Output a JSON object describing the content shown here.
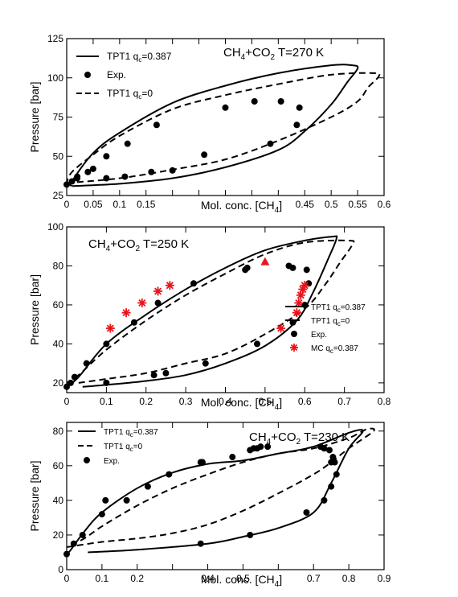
{
  "chart_data": [
    {
      "type": "line",
      "title": "CH4+CO2  T=270 K",
      "title_main": "CH",
      "title_sub1": "4",
      "title_mid": "+CO",
      "title_sub2": "2",
      "title_tail": "  T=270 K",
      "xlabel": "Mol. conc. [CH4]",
      "xlabel_main": "Mol. conc. [CH",
      "xlabel_sub": "4",
      "xlabel_tail": "]",
      "ylabel": "Pressure [bar]",
      "xlim": [
        0,
        0.6
      ],
      "ylim": [
        25,
        125
      ],
      "xticks": [
        {
          "v": 0,
          "label": "0"
        },
        {
          "v": 0.05,
          "label": "0.05"
        },
        {
          "v": 0.1,
          "label": "0.1"
        },
        {
          "v": 0.15,
          "label": "0.15"
        },
        {
          "v": 0.45,
          "label": "0.45"
        },
        {
          "v": 0.5,
          "label": "0.5"
        },
        {
          "v": 0.55,
          "label": "0.55"
        },
        {
          "v": 0.6,
          "label": "0.6"
        }
      ],
      "xminor": [
        0.2,
        0.25,
        0.3,
        0.35,
        0.4
      ],
      "yticks": [
        {
          "v": 25,
          "label": "25"
        },
        {
          "v": 50,
          "label": "50"
        },
        {
          "v": 75,
          "label": "75"
        },
        {
          "v": 100,
          "label": "100"
        },
        {
          "v": 125,
          "label": "125"
        }
      ],
      "legend": [
        {
          "style": "solid",
          "text": "TPT1 q",
          "sub": "c",
          "tail": "=0.387"
        },
        {
          "style": "dot",
          "text": "Exp."
        },
        {
          "style": "dashed",
          "text": "TPT1 q",
          "sub": "c",
          "tail": "=0"
        }
      ],
      "series": [
        {
          "name": "TPT1 qc=0.387",
          "style": "solid",
          "points": [
            [
              0.01,
              31
            ],
            [
              0.1,
              32.5
            ],
            [
              0.2,
              36
            ],
            [
              0.3,
              43
            ],
            [
              0.4,
              54
            ],
            [
              0.45,
              66
            ],
            [
              0.5,
              83
            ],
            [
              0.53,
              97
            ],
            [
              0.55,
              106
            ],
            [
              0.54,
              108
            ],
            [
              0.5,
              108
            ],
            [
              0.4,
              103
            ],
            [
              0.3,
              95
            ],
            [
              0.2,
              84
            ],
            [
              0.1,
              65
            ],
            [
              0.05,
              52
            ],
            [
              0.01,
              34
            ],
            [
              0.01,
              31
            ]
          ]
        },
        {
          "name": "TPT1 qc=0",
          "style": "dashed",
          "points": [
            [
              0,
              33
            ],
            [
              0.1,
              36
            ],
            [
              0.2,
              41.5
            ],
            [
              0.3,
              48
            ],
            [
              0.4,
              60
            ],
            [
              0.5,
              75
            ],
            [
              0.55,
              85
            ],
            [
              0.57,
              94
            ],
            [
              0.59,
              101
            ],
            [
              0.58,
              103
            ],
            [
              0.5,
              102
            ],
            [
              0.4,
              96
            ],
            [
              0.3,
              89
            ],
            [
              0.2,
              80
            ],
            [
              0.1,
              63
            ],
            [
              0.05,
              51
            ],
            [
              0.01,
              40
            ],
            [
              0,
              33
            ]
          ]
        },
        {
          "name": "Exp.",
          "style": "dot",
          "points": [
            [
              0,
              32
            ],
            [
              0.01,
              34
            ],
            [
              0.02,
              36
            ],
            [
              0.02,
              37
            ],
            [
              0.04,
              40
            ],
            [
              0.05,
              42
            ],
            [
              0.075,
              36
            ],
            [
              0.11,
              37
            ],
            [
              0.075,
              50
            ],
            [
              0.115,
              58
            ],
            [
              0.17,
              70
            ],
            [
              0.16,
              40
            ],
            [
              0.2,
              41
            ],
            [
              0.26,
              51
            ],
            [
              0.3,
              81
            ],
            [
              0.355,
              85
            ],
            [
              0.385,
              58
            ],
            [
              0.405,
              85
            ],
            [
              0.435,
              70
            ],
            [
              0.44,
              81
            ]
          ]
        }
      ]
    },
    {
      "type": "line",
      "title": "CH4+CO2  T=250 K",
      "title_main": "CH",
      "title_sub1": "4",
      "title_mid": "+CO",
      "title_sub2": "2",
      "title_tail": "  T=250 K",
      "xlabel": "Mol. conc. [CH4]",
      "xlabel_main": "Mol. conc. [CH",
      "xlabel_sub": "4",
      "xlabel_tail": "]",
      "ylabel": "Pressure [bar]",
      "xlim": [
        0,
        0.8
      ],
      "ylim": [
        15,
        100
      ],
      "xticks": [
        {
          "v": 0,
          "label": "0"
        },
        {
          "v": 0.1,
          "label": "0.1"
        },
        {
          "v": 0.2,
          "label": "0.2"
        },
        {
          "v": 0.3,
          "label": "0.3"
        },
        {
          "v": 0.4,
          "label": "0.4"
        },
        {
          "v": 0.5,
          "label": "0.5"
        },
        {
          "v": 0.6,
          "label": "0.6"
        },
        {
          "v": 0.7,
          "label": "0.7"
        },
        {
          "v": 0.8,
          "label": "0.8"
        }
      ],
      "xminor": [],
      "yticks": [
        {
          "v": 20,
          "label": "20"
        },
        {
          "v": 40,
          "label": "40"
        },
        {
          "v": 60,
          "label": "60"
        },
        {
          "v": 80,
          "label": "80"
        },
        {
          "v": 100,
          "label": "100"
        }
      ],
      "legend": [
        {
          "style": "solid",
          "text": "TPT1 q",
          "sub": "c",
          "tail": "=0.387"
        },
        {
          "style": "dashed",
          "text": "TPT1 q",
          "sub": "c",
          "tail": "=0"
        },
        {
          "style": "dot",
          "text": "Exp."
        },
        {
          "style": "star",
          "text": "MC q",
          "sub": "c",
          "tail": "=0.387"
        }
      ],
      "series": [
        {
          "name": "TPT1 qc=0.387",
          "style": "solid",
          "points": [
            [
              0.04,
              18
            ],
            [
              0.1,
              19
            ],
            [
              0.2,
              21
            ],
            [
              0.3,
              24
            ],
            [
              0.4,
              30
            ],
            [
              0.5,
              39
            ],
            [
              0.58,
              52
            ],
            [
              0.62,
              66
            ],
            [
              0.66,
              84
            ],
            [
              0.68,
              94
            ],
            [
              0.67,
              95
            ],
            [
              0.6,
              93
            ],
            [
              0.5,
              88
            ],
            [
              0.4,
              79
            ],
            [
              0.3,
              68
            ],
            [
              0.2,
              55
            ],
            [
              0.1,
              40
            ],
            [
              0.03,
              23
            ],
            [
              0,
              18
            ]
          ]
        },
        {
          "name": "TPT1 qc=0",
          "style": "dashed",
          "points": [
            [
              0.03,
              20
            ],
            [
              0.1,
              22
            ],
            [
              0.2,
              25
            ],
            [
              0.3,
              30
            ],
            [
              0.4,
              35
            ],
            [
              0.5,
              45
            ],
            [
              0.6,
              58
            ],
            [
              0.65,
              70
            ],
            [
              0.69,
              82
            ],
            [
              0.72,
              91
            ],
            [
              0.71,
              93
            ],
            [
              0.6,
              92
            ],
            [
              0.5,
              86
            ],
            [
              0.4,
              76
            ],
            [
              0.3,
              65
            ],
            [
              0.2,
              52
            ],
            [
              0.1,
              37
            ],
            [
              0.03,
              24
            ],
            [
              0,
              20
            ]
          ]
        },
        {
          "name": "Exp.",
          "style": "dot",
          "points": [
            [
              0,
              18
            ],
            [
              0.01,
              20
            ],
            [
              0.02,
              23
            ],
            [
              0.05,
              30
            ],
            [
              0.1,
              40
            ],
            [
              0.1,
              20
            ],
            [
              0.17,
              51
            ],
            [
              0.22,
              24
            ],
            [
              0.23,
              61
            ],
            [
              0.25,
              25
            ],
            [
              0.32,
              71
            ],
            [
              0.35,
              30
            ],
            [
              0.45,
              78
            ],
            [
              0.455,
              79
            ],
            [
              0.48,
              40
            ],
            [
              0.56,
              80
            ],
            [
              0.57,
              79
            ],
            [
              0.57,
              51
            ],
            [
              0.6,
              60
            ],
            [
              0.605,
              78
            ],
            [
              0.61,
              71
            ]
          ]
        },
        {
          "name": "MC qc=0.387",
          "style": "star",
          "points": [
            [
              0.11,
              48
            ],
            [
              0.15,
              56
            ],
            [
              0.19,
              61
            ],
            [
              0.23,
              67
            ],
            [
              0.26,
              70
            ],
            [
              0.54,
              48
            ],
            [
              0.58,
              56
            ],
            [
              0.585,
              61
            ],
            [
              0.59,
              65
            ],
            [
              0.595,
              68
            ],
            [
              0.6,
              70
            ]
          ]
        },
        {
          "name": "",
          "style": "triangle",
          "points": [
            [
              0.5,
              82
            ]
          ]
        }
      ]
    },
    {
      "type": "line",
      "title": "CH4+CO2  T=230 K",
      "title_main": "CH",
      "title_sub1": "4",
      "title_mid": "+CO",
      "title_sub2": "2",
      "title_tail": "  T=230 K",
      "xlabel": "Mol. conc. [CH4]",
      "xlabel_main": "Mol. conc. [CH",
      "xlabel_sub": "4",
      "xlabel_tail": "]",
      "ylabel": "Pressure [bar]",
      "xlim": [
        0,
        0.9
      ],
      "ylim": [
        0,
        85
      ],
      "xticks": [
        {
          "v": 0,
          "label": "0"
        },
        {
          "v": 0.1,
          "label": "0.1"
        },
        {
          "v": 0.2,
          "label": "0.2"
        },
        {
          "v": 0.4,
          "label": "0.4"
        },
        {
          "v": 0.5,
          "label": "0.5"
        },
        {
          "v": 0.7,
          "label": "0.7"
        },
        {
          "v": 0.8,
          "label": "0.8"
        },
        {
          "v": 0.9,
          "label": "0.9"
        }
      ],
      "xminor": [
        0.3,
        0.6
      ],
      "yticks": [
        {
          "v": 0,
          "label": "0"
        },
        {
          "v": 20,
          "label": "20"
        },
        {
          "v": 40,
          "label": "40"
        },
        {
          "v": 60,
          "label": "60"
        },
        {
          "v": 80,
          "label": "80"
        }
      ],
      "legend": [
        {
          "style": "solid",
          "text": "TPT1 q",
          "sub": "c",
          "tail": "=0.387"
        },
        {
          "style": "dashed",
          "text": "TPT1 q",
          "sub": "c",
          "tail": "=0"
        },
        {
          "style": "dot",
          "text": "Exp."
        }
      ],
      "series": [
        {
          "name": "TPT1 qc=0.387",
          "style": "solid",
          "points": [
            [
              0.06,
              10
            ],
            [
              0.2,
              11.5
            ],
            [
              0.4,
              15
            ],
            [
              0.5,
              19
            ],
            [
              0.6,
              24
            ],
            [
              0.7,
              33
            ],
            [
              0.75,
              50
            ],
            [
              0.8,
              70
            ],
            [
              0.84,
              80
            ],
            [
              0.8,
              79
            ],
            [
              0.7,
              71
            ],
            [
              0.6,
              67
            ],
            [
              0.5,
              63
            ],
            [
              0.4,
              61
            ],
            [
              0.3,
              56
            ],
            [
              0.2,
              47
            ],
            [
              0.1,
              33
            ],
            [
              0.05,
              22
            ],
            [
              0.01,
              11
            ],
            [
              0,
              9
            ]
          ]
        },
        {
          "name": "TPT1 qc=0",
          "style": "dashed",
          "points": [
            [
              0,
              13
            ],
            [
              0.1,
              16
            ],
            [
              0.2,
              18
            ],
            [
              0.3,
              21
            ],
            [
              0.4,
              26
            ],
            [
              0.5,
              34
            ],
            [
              0.6,
              44
            ],
            [
              0.7,
              55
            ],
            [
              0.75,
              62
            ],
            [
              0.8,
              70
            ],
            [
              0.87,
              80
            ],
            [
              0.85,
              81
            ],
            [
              0.8,
              76
            ],
            [
              0.7,
              70
            ],
            [
              0.6,
              67
            ],
            [
              0.5,
              62
            ],
            [
              0.4,
              55
            ],
            [
              0.3,
              47
            ],
            [
              0.2,
              37
            ],
            [
              0.1,
              25
            ],
            [
              0.05,
              18
            ],
            [
              0,
              13
            ]
          ]
        },
        {
          "name": "Exp.",
          "style": "dot",
          "points": [
            [
              0,
              9
            ],
            [
              0.02,
              15
            ],
            [
              0.045,
              20
            ],
            [
              0.1,
              32
            ],
            [
              0.11,
              40
            ],
            [
              0.17,
              40
            ],
            [
              0.23,
              48
            ],
            [
              0.29,
              55
            ],
            [
              0.38,
              15
            ],
            [
              0.38,
              62
            ],
            [
              0.385,
              62
            ],
            [
              0.47,
              65
            ],
            [
              0.52,
              20
            ],
            [
              0.52,
              69
            ],
            [
              0.53,
              70
            ],
            [
              0.54,
              70
            ],
            [
              0.55,
              71
            ],
            [
              0.57,
              71
            ],
            [
              0.68,
              33
            ],
            [
              0.72,
              71
            ],
            [
              0.73,
              70
            ],
            [
              0.73,
              40
            ],
            [
              0.745,
              69
            ],
            [
              0.75,
              48
            ],
            [
              0.75,
              62
            ],
            [
              0.76,
              62
            ],
            [
              0.765,
              55
            ],
            [
              0.755,
              65
            ]
          ]
        }
      ]
    }
  ]
}
